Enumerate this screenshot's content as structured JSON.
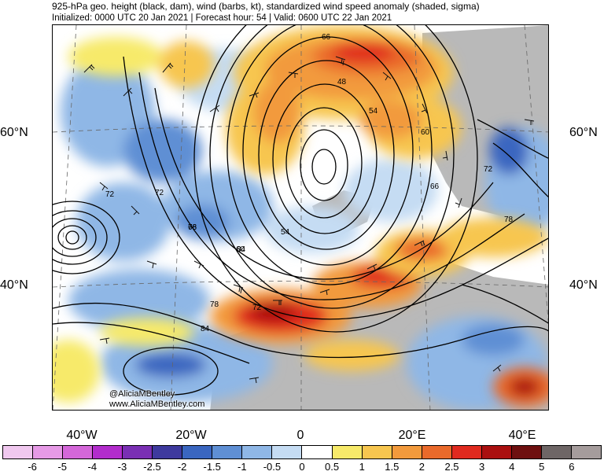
{
  "header": {
    "title_line1": "925-hPa geo. height (black, dam), wind (barbs, kt), standardized wind speed anomaly (shaded, sigma)",
    "title_line2": "Initialized: 0000 UTC 20 Jan 2021 | Forecast hour: 54 | Valid: 0600 UTC 22 Jan 2021"
  },
  "map": {
    "lat_labels": [
      "60°N",
      "40°N"
    ],
    "lon_labels": [
      "40°W",
      "20°W",
      "0",
      "20°E",
      "40°E"
    ],
    "contour_labels": [
      "66",
      "48",
      "54",
      "60",
      "66",
      "72",
      "78",
      "84",
      "72",
      "66",
      "60",
      "54",
      "78",
      "72",
      "84",
      "78",
      "72"
    ],
    "credit_handle": "@AliciaMBentley",
    "credit_url": "www.AliciaMBentley.com"
  },
  "legend": {
    "labels": [
      "-6",
      "-5",
      "-4",
      "-3",
      "-2.5",
      "-2",
      "-1.5",
      "-1",
      "-0.5",
      "0",
      "0.5",
      "1",
      "1.5",
      "2",
      "2.5",
      "3",
      "4",
      "5",
      "6"
    ],
    "colors": [
      "#f0c8ef",
      "#e69ae6",
      "#d467d9",
      "#b22ccc",
      "#7a2fb4",
      "#3e3a9e",
      "#3a66c0",
      "#5f8fd4",
      "#8fb7e6",
      "#c5dcf3",
      "#ffffff",
      "#f7ea6a",
      "#f7c64f",
      "#f29a3c",
      "#ea6a2b",
      "#e02a1f",
      "#aa1010",
      "#6e1010",
      "#6e6666",
      "#a59c9c"
    ]
  }
}
